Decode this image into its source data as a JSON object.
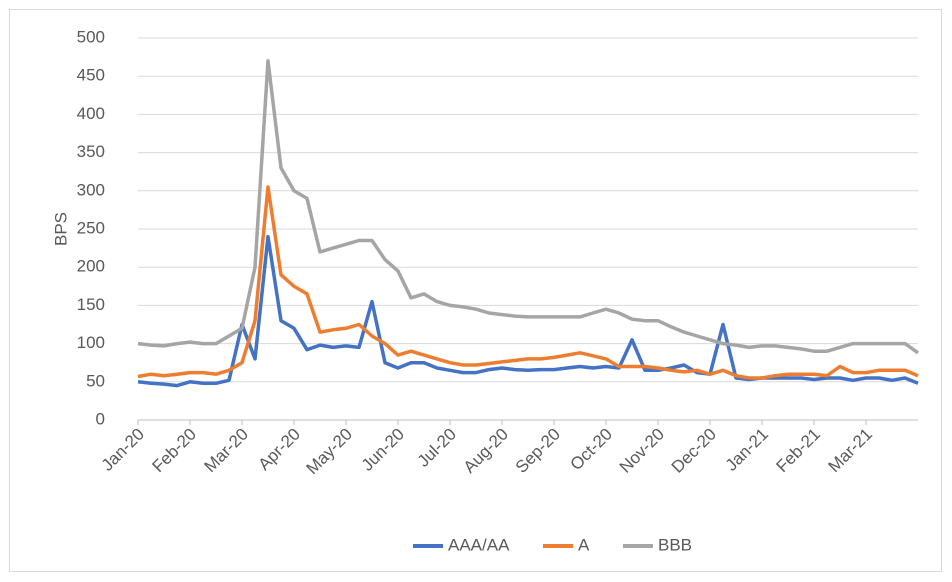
{
  "chart_data": {
    "type": "line",
    "y_label": "BPS",
    "x": [
      0,
      0.25,
      0.5,
      0.75,
      1,
      1.25,
      1.5,
      1.75,
      2,
      2.25,
      2.5,
      2.75,
      3,
      3.25,
      3.5,
      3.75,
      4,
      4.25,
      4.5,
      4.75,
      5,
      5.25,
      5.5,
      5.75,
      6,
      6.25,
      6.5,
      6.75,
      7,
      7.25,
      7.5,
      7.75,
      8,
      8.25,
      8.5,
      8.75,
      9,
      9.25,
      9.5,
      9.75,
      10,
      10.25,
      10.5,
      10.75,
      11,
      11.25,
      11.5,
      11.75,
      12,
      12.25,
      12.5,
      12.75,
      13,
      13.25,
      13.5,
      13.75,
      14,
      14.25,
      14.5,
      14.75,
      15
    ],
    "xlim": [
      0,
      15
    ],
    "xticks": [
      {
        "value": 0,
        "label": "Jan-20"
      },
      {
        "value": 1,
        "label": "Feb-20"
      },
      {
        "value": 2,
        "label": "Mar-20"
      },
      {
        "value": 3,
        "label": "Apr-20"
      },
      {
        "value": 4,
        "label": "May-20"
      },
      {
        "value": 5,
        "label": "Jun-20"
      },
      {
        "value": 6,
        "label": "Jul-20"
      },
      {
        "value": 7,
        "label": "Aug-20"
      },
      {
        "value": 8,
        "label": "Sep-20"
      },
      {
        "value": 9,
        "label": "Oct-20"
      },
      {
        "value": 10,
        "label": "Nov-20"
      },
      {
        "value": 11,
        "label": "Dec-20"
      },
      {
        "value": 12,
        "label": "Jan-21"
      },
      {
        "value": 13,
        "label": "Feb-21"
      },
      {
        "value": 14,
        "label": "Mar-21"
      }
    ],
    "ylim": [
      0,
      500
    ],
    "yticks": [
      0,
      50,
      100,
      150,
      200,
      250,
      300,
      350,
      400,
      450,
      500
    ],
    "grid": true,
    "legend": "bottom",
    "series": [
      {
        "name": "AAA/AA",
        "color": "#4472c4",
        "values": [
          50,
          48,
          47,
          45,
          50,
          48,
          48,
          52,
          125,
          80,
          240,
          130,
          120,
          92,
          98,
          95,
          97,
          95,
          155,
          75,
          68,
          75,
          75,
          68,
          65,
          62,
          62,
          66,
          68,
          66,
          65,
          66,
          66,
          68,
          70,
          68,
          70,
          68,
          105,
          65,
          65,
          68,
          72,
          62,
          60,
          125,
          55,
          53,
          55,
          55,
          55,
          55,
          53,
          55,
          55,
          52,
          55,
          55,
          52,
          55,
          48
        ]
      },
      {
        "name": "A",
        "color": "#ed7d31",
        "values": [
          57,
          60,
          58,
          60,
          62,
          62,
          60,
          65,
          75,
          130,
          305,
          190,
          175,
          165,
          115,
          118,
          120,
          125,
          110,
          100,
          85,
          90,
          85,
          80,
          75,
          72,
          72,
          74,
          76,
          78,
          80,
          80,
          82,
          85,
          88,
          84,
          80,
          70,
          70,
          70,
          68,
          65,
          63,
          65,
          60,
          65,
          58,
          55,
          55,
          58,
          60,
          60,
          60,
          58,
          70,
          62,
          62,
          65,
          65,
          65,
          58
        ]
      },
      {
        "name": "BBB",
        "color": "#a5a5a5",
        "values": [
          100,
          98,
          97,
          100,
          102,
          100,
          100,
          110,
          120,
          200,
          470,
          330,
          300,
          290,
          220,
          225,
          230,
          235,
          235,
          210,
          195,
          160,
          165,
          155,
          150,
          148,
          145,
          140,
          138,
          136,
          135,
          135,
          135,
          135,
          135,
          140,
          145,
          140,
          132,
          130,
          130,
          122,
          115,
          110,
          105,
          100,
          98,
          95,
          97,
          97,
          95,
          93,
          90,
          90,
          95,
          100,
          100,
          100,
          100,
          100,
          88
        ]
      }
    ]
  }
}
